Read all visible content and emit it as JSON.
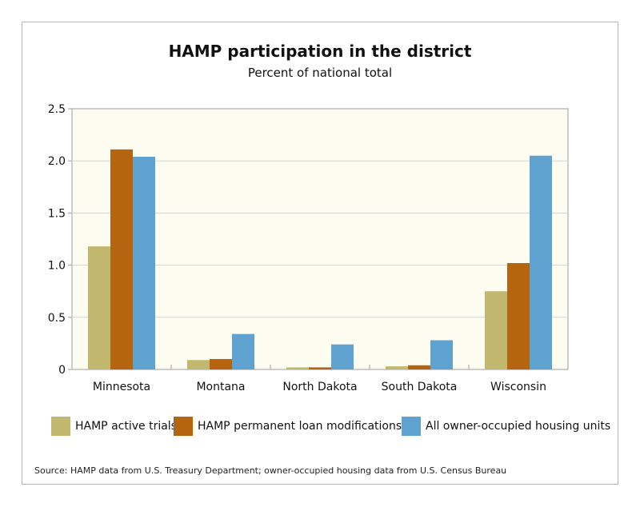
{
  "chart_data": {
    "type": "bar",
    "title": "HAMP participation in the district",
    "subtitle": "Percent of national total",
    "categories": [
      "Minnesota",
      "Montana",
      "North Dakota",
      "South Dakota",
      "Wisconsin"
    ],
    "series": [
      {
        "name": "HAMP active trials",
        "color": "#c2b76e",
        "values": [
          1.18,
          0.09,
          0.02,
          0.03,
          0.75
        ]
      },
      {
        "name": "HAMP permanent loan modifications",
        "color": "#b5650f",
        "values": [
          2.11,
          0.1,
          0.02,
          0.04,
          1.02
        ]
      },
      {
        "name": "All owner-occupied housing units",
        "color": "#5fa2cf",
        "values": [
          2.04,
          0.34,
          0.24,
          0.28,
          2.05
        ]
      }
    ],
    "yticks": [
      "0",
      "0.5",
      "1.0",
      "1.5",
      "2.0",
      "2.5"
    ],
    "ylim": [
      0,
      2.5
    ],
    "grid": true,
    "legend_position": "bottom",
    "plot_background": "#fdfcf0"
  },
  "source_note": "Source: HAMP data from U.S. Treasury Department; owner-occupied housing data from U.S. Census Bureau"
}
